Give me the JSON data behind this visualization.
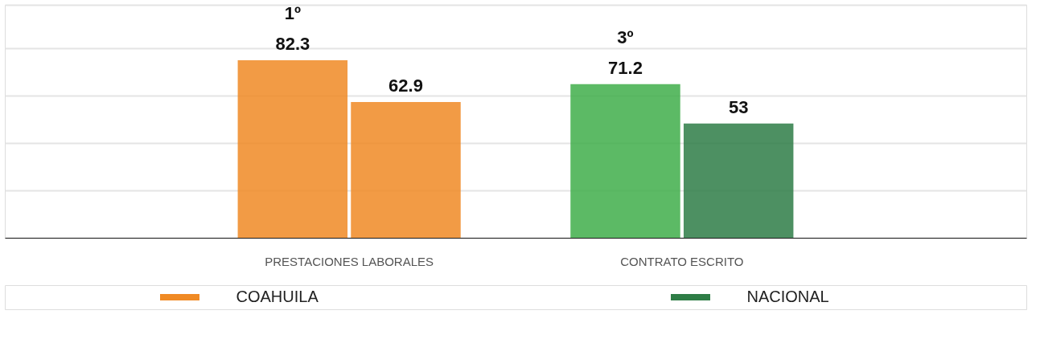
{
  "chart_data": {
    "type": "bar",
    "categories": [
      "PRESTACIONES LABORALES",
      "CONTRATO ESCRITO"
    ],
    "series": [
      {
        "name": "COAHUILA",
        "color": "#f08a24",
        "colors": [
          "#f08a24",
          "#40ae4a"
        ],
        "values": [
          82.3,
          71.2
        ]
      },
      {
        "name": "NACIONAL",
        "color": "#2e7d46",
        "colors": [
          "#f08a24",
          "#2e7d46"
        ],
        "values": [
          62.9,
          53
        ]
      }
    ],
    "data_labels": true,
    "annotations": [
      "1º",
      "3º"
    ],
    "ylim": [
      0,
      108
    ],
    "yticks": [
      {
        "value": 0,
        "label": null
      },
      {
        "value": 22,
        "label": null
      },
      {
        "value": 44,
        "label": null
      },
      {
        "value": 66,
        "label": null
      },
      {
        "value": 88,
        "label": null
      },
      {
        "value": 108,
        "label": null
      }
    ],
    "grid": "y",
    "tick_labels": "x",
    "legend": "bottom"
  }
}
